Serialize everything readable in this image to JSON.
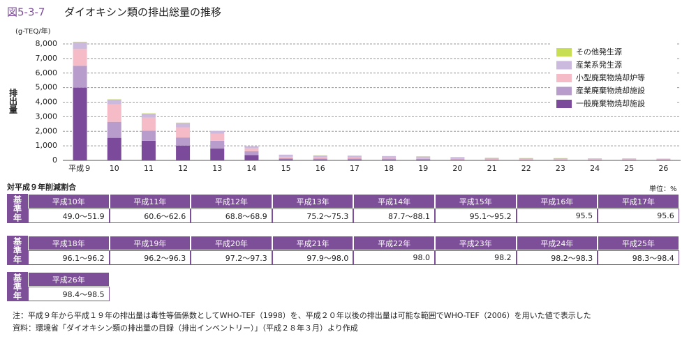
{
  "chart_data": {
    "type": "stacked_bar",
    "figure_number": "図5-3-7",
    "title": "ダイオキシン類の排出総量の推移",
    "y_unit": "(g-TEQ/年)",
    "y_label": "排出量",
    "categories": [
      "平成９",
      "10",
      "11",
      "12",
      "13",
      "14",
      "15",
      "16",
      "17",
      "18",
      "19",
      "20",
      "21",
      "22",
      "23",
      "24",
      "25",
      "26"
    ],
    "series": [
      {
        "name": "一般廃棄物焼却施設",
        "color": "#7b4a9a",
        "values": [
          5000,
          1550,
          1350,
          1019,
          812,
          370,
          70,
          64,
          62,
          54,
          52,
          36,
          33,
          32,
          30,
          28,
          26,
          25
        ]
      },
      {
        "name": "産業廃棄物焼却施設",
        "color": "#b89ccc",
        "values": [
          1500,
          1100,
          690,
          555,
          533,
          260,
          75,
          70,
          73,
          63,
          61,
          40,
          30,
          29,
          28,
          26,
          25,
          23
        ]
      },
      {
        "name": "小型廃棄物焼却炉等",
        "color": "#f5bcc8",
        "values": [
          1150,
          1200,
          900,
          700,
          500,
          200,
          100,
          70,
          60,
          50,
          45,
          40,
          35,
          30,
          28,
          26,
          25,
          23
        ]
      },
      {
        "name": "産業系発生源",
        "color": "#cbb9de",
        "values": [
          480,
          330,
          270,
          300,
          170,
          130,
          140,
          130,
          130,
          120,
          110,
          100,
          70,
          60,
          57,
          50,
          50,
          42
        ]
      },
      {
        "name": "その他発生源",
        "color": "#c8df55",
        "values": [
          20,
          20,
          20,
          20,
          20,
          15,
          10,
          10,
          10,
          10,
          10,
          10,
          10,
          10,
          10,
          10,
          10,
          10
        ]
      }
    ],
    "ylim": [
      0,
      8000
    ],
    "yticks": [
      0,
      {
        "value": 1000,
        "label": "1,000"
      },
      {
        "value": 2000,
        "label": "2,000"
      },
      {
        "value": 3000,
        "label": "3,000"
      },
      {
        "value": 4000,
        "label": "4,000"
      },
      {
        "value": 5000,
        "label": "5,000"
      },
      {
        "value": 6000,
        "label": "6,000"
      },
      {
        "value": 7000,
        "label": "7,000"
      },
      {
        "value": 8000,
        "label": "8,000"
      }
    ],
    "grid": true
  },
  "table": {
    "title": "対平成９年削減割合",
    "unit": "単位：%",
    "blocks": [
      {
        "side": "基準年",
        "headers": [
          "平成10年",
          "平成11年",
          "平成12年",
          "平成13年",
          "平成14年",
          "平成15年",
          "平成16年",
          "平成17年"
        ],
        "values": [
          "49.0～51.9",
          "60.6～62.6",
          "68.8～68.9",
          "75.2～75.3",
          "87.7～88.1",
          "95.1～95.2",
          "95.5",
          "95.6"
        ]
      },
      {
        "side": "基準年",
        "headers": [
          "平成18年",
          "平成19年",
          "平成20年",
          "平成21年",
          "平成22年",
          "平成23年",
          "平成24年",
          "平成25年"
        ],
        "values": [
          "96.1～96.2",
          "96.2～96.3",
          "97.2～97.3",
          "97.9～98.0",
          "98.0",
          "98.2",
          "98.2～98.3",
          "98.3～98.4"
        ]
      },
      {
        "side": "基準年",
        "headers": [
          "平成26年"
        ],
        "values": [
          "98.4～98.5"
        ]
      }
    ]
  },
  "notes": [
    "注：平成９年から平成１９年の排出量は毒性等価係数としてWHO-TEF（1998）を、平成２０年以後の排出量は可能な範囲でWHO-TEF（2006）を用いた値で表示した",
    "資料：環境省「ダイオキシン類の排出量の目録（排出インベントリー）」（平成２８年３月）より作成"
  ]
}
